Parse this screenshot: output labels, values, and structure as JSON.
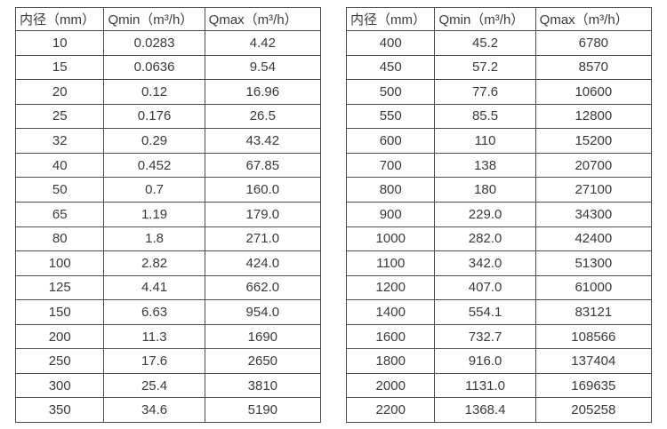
{
  "page": {
    "background_color": "#ffffff",
    "text_color": "#3a3a3a",
    "border_color": "#4d4d4d"
  },
  "tables": [
    {
      "title": "diameter-flow-table-left",
      "headers": [
        "内径（mm）",
        "Qmin（m³/h）",
        "Qmax（m³/h）"
      ],
      "rows": [
        [
          "10",
          "0.0283",
          "4.42"
        ],
        [
          "15",
          "0.0636",
          "9.54"
        ],
        [
          "20",
          "0.12",
          "16.96"
        ],
        [
          "25",
          "0.176",
          "26.5"
        ],
        [
          "32",
          "0.29",
          "43.42"
        ],
        [
          "40",
          "0.452",
          "67.85"
        ],
        [
          "50",
          "0.7",
          "160.0"
        ],
        [
          "65",
          "1.19",
          "179.0"
        ],
        [
          "80",
          "1.8",
          "271.0"
        ],
        [
          "100",
          "2.82",
          "424.0"
        ],
        [
          "125",
          "4.41",
          "662.0"
        ],
        [
          "150",
          "6.63",
          "954.0"
        ],
        [
          "200",
          "11.3",
          "1690"
        ],
        [
          "250",
          "17.6",
          "2650"
        ],
        [
          "300",
          "25.4",
          "3810"
        ],
        [
          "350",
          "34.6",
          "5190"
        ]
      ]
    },
    {
      "title": "diameter-flow-table-right",
      "headers": [
        "内径（mm）",
        "Qmin（m³/h）",
        "Qmax（m³/h）"
      ],
      "rows": [
        [
          "400",
          "45.2",
          "6780"
        ],
        [
          "450",
          "57.2",
          "8570"
        ],
        [
          "500",
          "77.6",
          "10600"
        ],
        [
          "550",
          "85.5",
          "12800"
        ],
        [
          "600",
          "110",
          "15200"
        ],
        [
          "700",
          "138",
          "20700"
        ],
        [
          "800",
          "180",
          "27100"
        ],
        [
          "900",
          "229.0",
          "34300"
        ],
        [
          "1000",
          "282.0",
          "42400"
        ],
        [
          "1100",
          "342.0",
          "51300"
        ],
        [
          "1200",
          "407.0",
          "61000"
        ],
        [
          "1400",
          "554.1",
          "83121"
        ],
        [
          "1600",
          "732.7",
          "108566"
        ],
        [
          "1800",
          "916.0",
          "137404"
        ],
        [
          "2000",
          "1131.0",
          "169635"
        ],
        [
          "2200",
          "1368.4",
          "205258"
        ]
      ]
    }
  ]
}
